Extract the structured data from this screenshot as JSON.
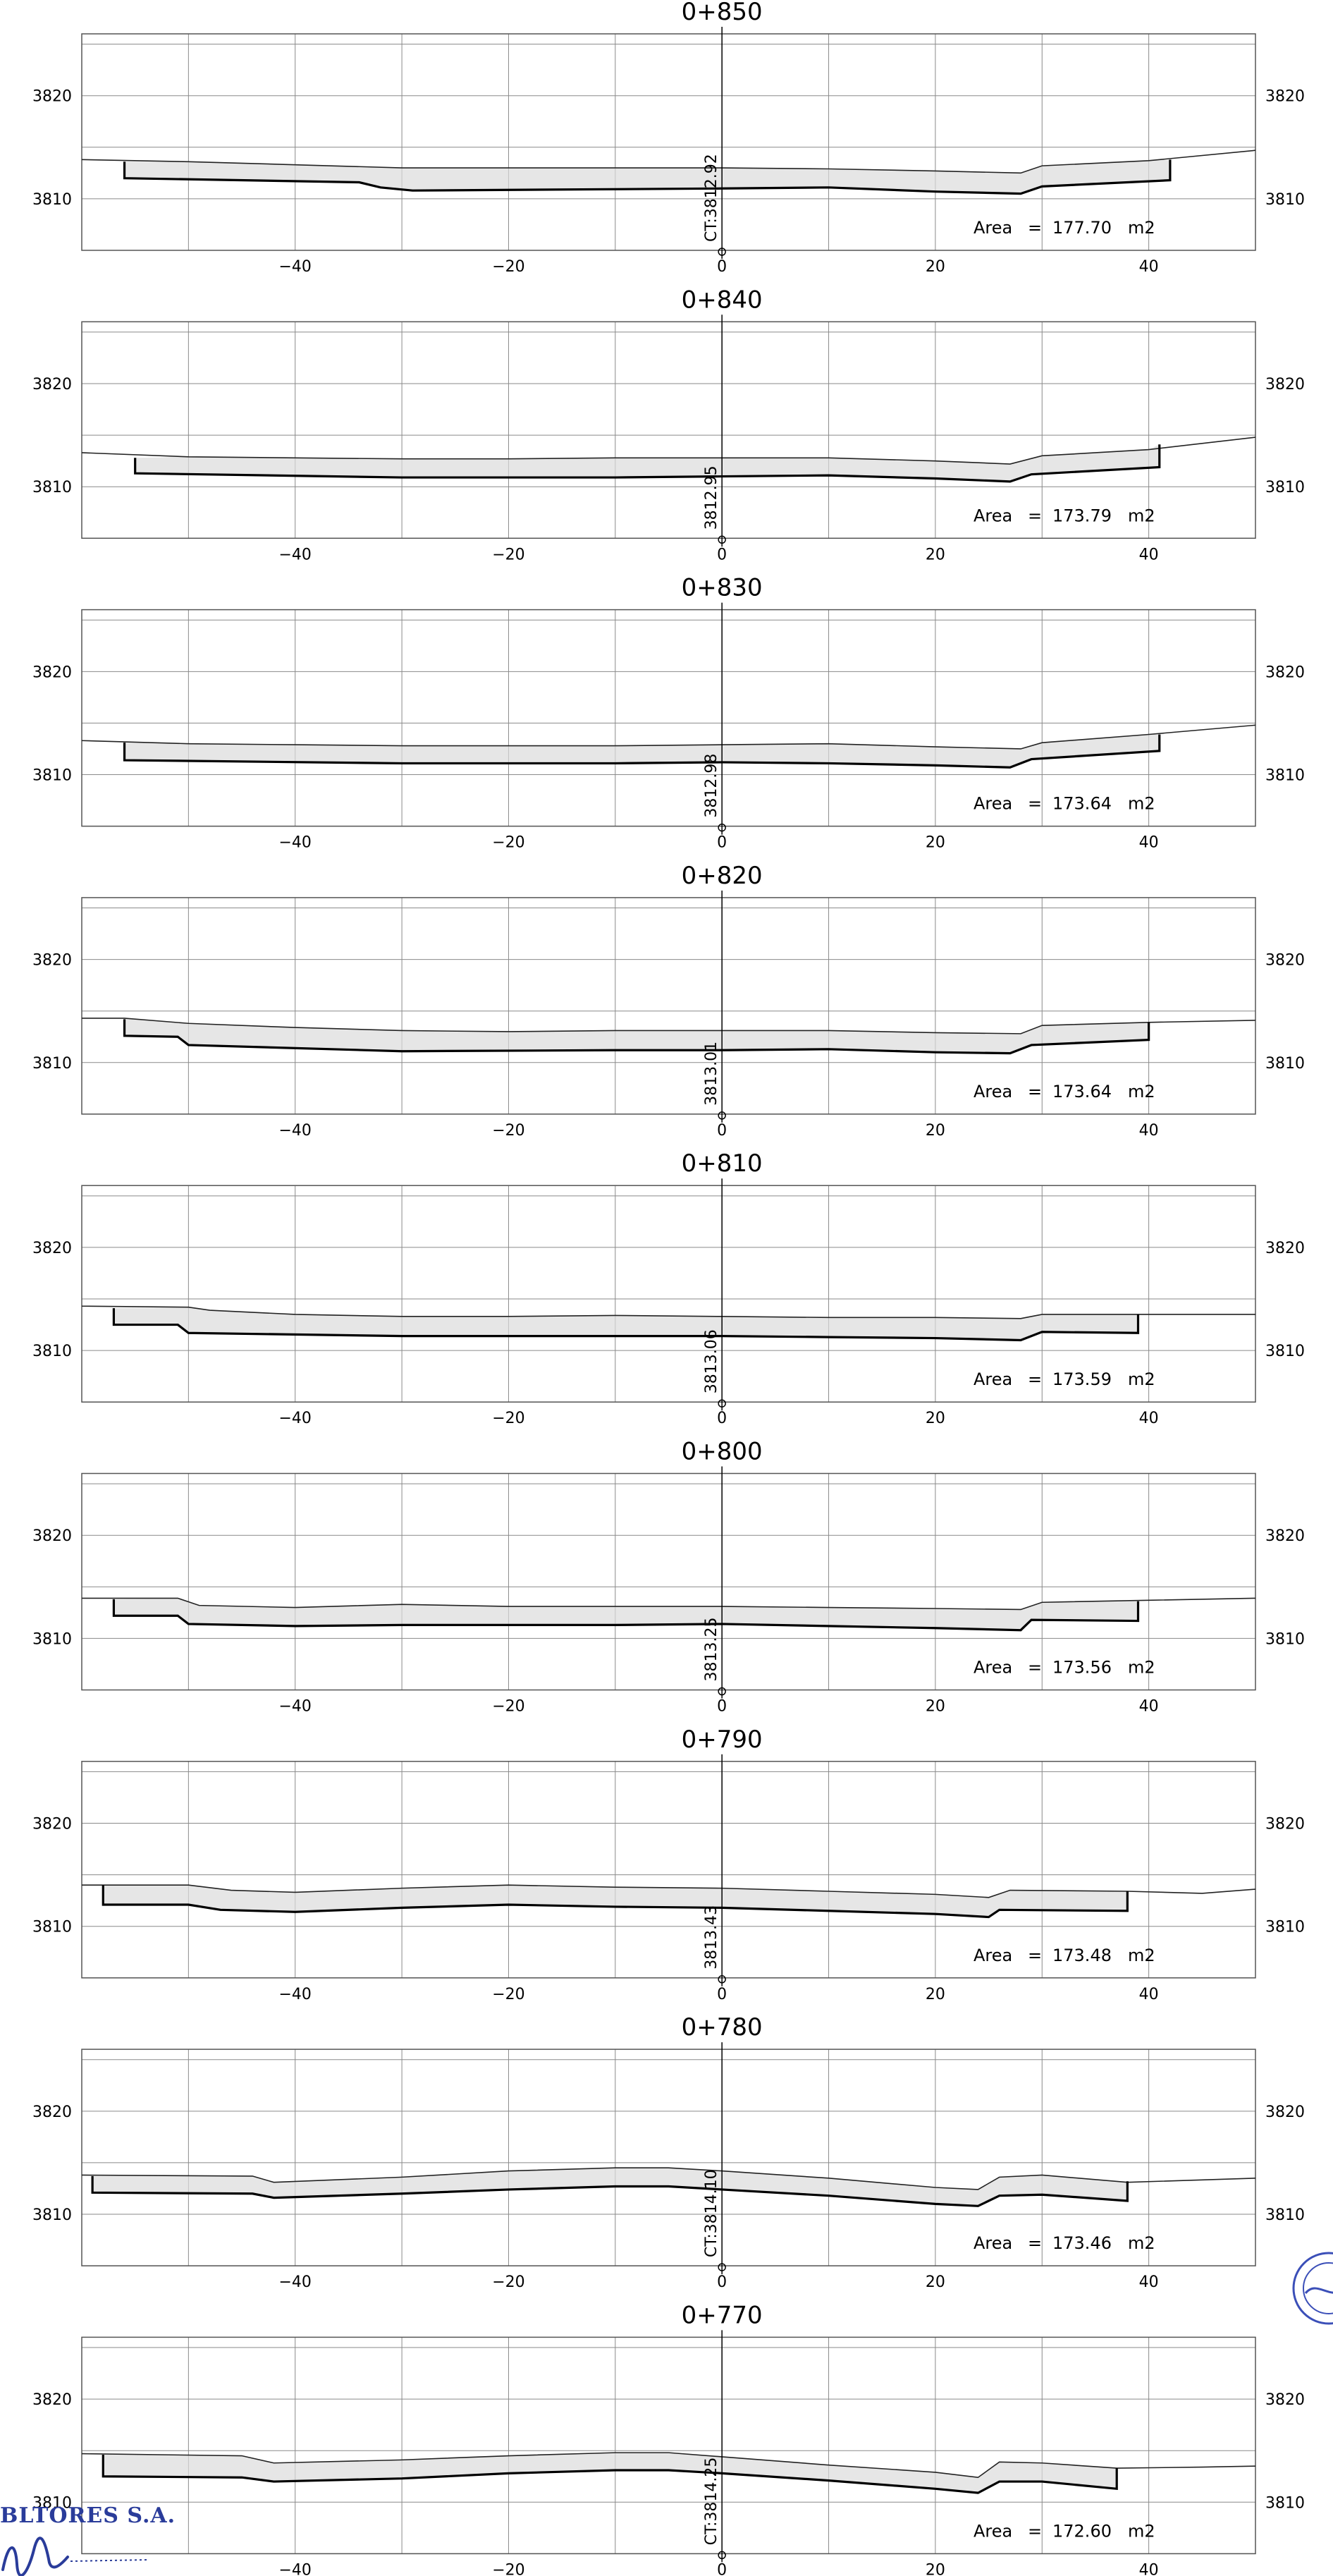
{
  "drawing": {
    "x_axis": {
      "min": -60,
      "max": 50,
      "ticks": [
        -40,
        -20,
        0,
        20,
        40
      ],
      "grid_step": 10
    },
    "y_axis": {
      "min": 3805,
      "max": 3826,
      "ticks": [
        3810,
        3820
      ],
      "grid_step": 5
    },
    "line_color": "#000000",
    "grid_color": "#8a8a8a",
    "fill_color": "#dcdcdc",
    "area_label": "Area",
    "area_equals": "=",
    "area_unit": "m2"
  },
  "sections": [
    {
      "station": "0+850",
      "area": "177.70",
      "axis_label": "CT:3812.92",
      "terrain": [
        [
          -60,
          3813.8
        ],
        [
          -50,
          3813.6
        ],
        [
          -40,
          3813.3
        ],
        [
          -30,
          3813.0
        ],
        [
          -20,
          3813.0
        ],
        [
          -10,
          3813.0
        ],
        [
          0,
          3813.0
        ],
        [
          10,
          3812.9
        ],
        [
          20,
          3812.7
        ],
        [
          28,
          3812.5
        ],
        [
          30,
          3813.2
        ],
        [
          40,
          3813.7
        ],
        [
          50,
          3814.7
        ]
      ],
      "design": [
        [
          -56,
          3813.6
        ],
        [
          -56,
          3812.0
        ],
        [
          -34,
          3811.6
        ],
        [
          -32,
          3811.1
        ],
        [
          -29,
          3810.8
        ],
        [
          0,
          3811.0
        ],
        [
          10,
          3811.1
        ],
        [
          20,
          3810.7
        ],
        [
          28,
          3810.5
        ],
        [
          30,
          3811.2
        ],
        [
          42,
          3811.8
        ],
        [
          42,
          3813.8
        ]
      ]
    },
    {
      "station": "0+840",
      "area": "173.79",
      "axis_label": "3812.95",
      "terrain": [
        [
          -60,
          3813.3
        ],
        [
          -50,
          3812.9
        ],
        [
          -40,
          3812.8
        ],
        [
          -30,
          3812.7
        ],
        [
          -20,
          3812.7
        ],
        [
          -10,
          3812.8
        ],
        [
          0,
          3812.8
        ],
        [
          10,
          3812.8
        ],
        [
          20,
          3812.5
        ],
        [
          27,
          3812.2
        ],
        [
          30,
          3813.0
        ],
        [
          40,
          3813.6
        ],
        [
          50,
          3814.8
        ]
      ],
      "design": [
        [
          -55,
          3812.8
        ],
        [
          -55,
          3811.3
        ],
        [
          -30,
          3810.9
        ],
        [
          -10,
          3810.9
        ],
        [
          0,
          3811.0
        ],
        [
          10,
          3811.1
        ],
        [
          20,
          3810.8
        ],
        [
          27,
          3810.5
        ],
        [
          29,
          3811.2
        ],
        [
          41,
          3811.9
        ],
        [
          41,
          3814.1
        ]
      ]
    },
    {
      "station": "0+830",
      "area": "173.64",
      "axis_label": "3812.98",
      "terrain": [
        [
          -60,
          3813.3
        ],
        [
          -50,
          3813.0
        ],
        [
          -40,
          3812.9
        ],
        [
          -30,
          3812.8
        ],
        [
          -20,
          3812.8
        ],
        [
          -10,
          3812.8
        ],
        [
          0,
          3812.9
        ],
        [
          10,
          3813.0
        ],
        [
          20,
          3812.7
        ],
        [
          28,
          3812.5
        ],
        [
          30,
          3813.1
        ],
        [
          40,
          3813.9
        ],
        [
          50,
          3814.8
        ]
      ],
      "design": [
        [
          -56,
          3813.1
        ],
        [
          -56,
          3811.4
        ],
        [
          -30,
          3811.1
        ],
        [
          -10,
          3811.1
        ],
        [
          0,
          3811.2
        ],
        [
          10,
          3811.1
        ],
        [
          20,
          3810.9
        ],
        [
          27,
          3810.7
        ],
        [
          29,
          3811.5
        ],
        [
          41,
          3812.3
        ],
        [
          41,
          3813.9
        ]
      ]
    },
    {
      "station": "0+820",
      "area": "173.64",
      "axis_label": "3813.01",
      "terrain": [
        [
          -60,
          3814.3
        ],
        [
          -56,
          3814.3
        ],
        [
          -50,
          3813.8
        ],
        [
          -40,
          3813.4
        ],
        [
          -30,
          3813.1
        ],
        [
          -20,
          3813.0
        ],
        [
          -10,
          3813.1
        ],
        [
          0,
          3813.1
        ],
        [
          10,
          3813.1
        ],
        [
          20,
          3812.9
        ],
        [
          28,
          3812.8
        ],
        [
          30,
          3813.6
        ],
        [
          40,
          3813.9
        ],
        [
          50,
          3814.1
        ]
      ],
      "design": [
        [
          -56,
          3814.2
        ],
        [
          -56,
          3812.6
        ],
        [
          -51,
          3812.5
        ],
        [
          -50,
          3811.7
        ],
        [
          -30,
          3811.1
        ],
        [
          -10,
          3811.2
        ],
        [
          0,
          3811.2
        ],
        [
          10,
          3811.3
        ],
        [
          20,
          3811.0
        ],
        [
          27,
          3810.9
        ],
        [
          29,
          3811.7
        ],
        [
          40,
          3812.2
        ],
        [
          40,
          3813.9
        ]
      ]
    },
    {
      "station": "0+810",
      "area": "173.59",
      "axis_label": "3813.06",
      "terrain": [
        [
          -60,
          3814.3
        ],
        [
          -50,
          3814.2
        ],
        [
          -48,
          3813.9
        ],
        [
          -40,
          3813.5
        ],
        [
          -30,
          3813.3
        ],
        [
          -20,
          3813.3
        ],
        [
          -10,
          3813.4
        ],
        [
          0,
          3813.3
        ],
        [
          10,
          3813.2
        ],
        [
          20,
          3813.2
        ],
        [
          28,
          3813.1
        ],
        [
          30,
          3813.5
        ],
        [
          40,
          3813.5
        ],
        [
          50,
          3813.5
        ]
      ],
      "design": [
        [
          -57,
          3814.1
        ],
        [
          -57,
          3812.5
        ],
        [
          -51,
          3812.5
        ],
        [
          -50,
          3811.7
        ],
        [
          -30,
          3811.4
        ],
        [
          -10,
          3811.4
        ],
        [
          0,
          3811.4
        ],
        [
          10,
          3811.3
        ],
        [
          20,
          3811.2
        ],
        [
          28,
          3811.0
        ],
        [
          30,
          3811.8
        ],
        [
          39,
          3811.7
        ],
        [
          39,
          3813.5
        ]
      ]
    },
    {
      "station": "0+800",
      "area": "173.56",
      "axis_label": "3813.25",
      "terrain": [
        [
          -60,
          3813.9
        ],
        [
          -51,
          3813.9
        ],
        [
          -49,
          3813.2
        ],
        [
          -40,
          3813.0
        ],
        [
          -30,
          3813.3
        ],
        [
          -20,
          3813.1
        ],
        [
          -10,
          3813.1
        ],
        [
          0,
          3813.1
        ],
        [
          10,
          3813.0
        ],
        [
          20,
          3812.9
        ],
        [
          28,
          3812.8
        ],
        [
          30,
          3813.5
        ],
        [
          40,
          3813.7
        ],
        [
          50,
          3813.9
        ]
      ],
      "design": [
        [
          -57,
          3813.8
        ],
        [
          -57,
          3812.2
        ],
        [
          -51,
          3812.2
        ],
        [
          -50,
          3811.4
        ],
        [
          -40,
          3811.2
        ],
        [
          -30,
          3811.3
        ],
        [
          -10,
          3811.3
        ],
        [
          0,
          3811.4
        ],
        [
          10,
          3811.2
        ],
        [
          20,
          3811.0
        ],
        [
          28,
          3810.8
        ],
        [
          29,
          3811.8
        ],
        [
          39,
          3811.7
        ],
        [
          39,
          3813.6
        ]
      ]
    },
    {
      "station": "0+790",
      "area": "173.48",
      "axis_label": "3813.43",
      "terrain": [
        [
          -60,
          3814.0
        ],
        [
          -50,
          3814.0
        ],
        [
          -46,
          3813.5
        ],
        [
          -40,
          3813.3
        ],
        [
          -30,
          3813.7
        ],
        [
          -20,
          3814.0
        ],
        [
          -10,
          3813.8
        ],
        [
          0,
          3813.7
        ],
        [
          10,
          3813.4
        ],
        [
          20,
          3813.1
        ],
        [
          25,
          3812.8
        ],
        [
          27,
          3813.5
        ],
        [
          38,
          3813.4
        ],
        [
          45,
          3813.2
        ],
        [
          50,
          3813.6
        ]
      ],
      "design": [
        [
          -58,
          3814.0
        ],
        [
          -58,
          3812.1
        ],
        [
          -50,
          3812.1
        ],
        [
          -47,
          3811.6
        ],
        [
          -40,
          3811.4
        ],
        [
          -30,
          3811.8
        ],
        [
          -20,
          3812.1
        ],
        [
          -10,
          3811.9
        ],
        [
          0,
          3811.8
        ],
        [
          10,
          3811.5
        ],
        [
          20,
          3811.2
        ],
        [
          25,
          3810.9
        ],
        [
          26,
          3811.6
        ],
        [
          38,
          3811.5
        ],
        [
          38,
          3813.4
        ]
      ]
    },
    {
      "station": "0+780",
      "area": "173.46",
      "axis_label": "CT:3814.10",
      "terrain": [
        [
          -60,
          3813.8
        ],
        [
          -44,
          3813.7
        ],
        [
          -42,
          3813.1
        ],
        [
          -30,
          3813.6
        ],
        [
          -20,
          3814.2
        ],
        [
          -10,
          3814.5
        ],
        [
          -5,
          3814.5
        ],
        [
          0,
          3814.2
        ],
        [
          10,
          3813.5
        ],
        [
          20,
          3812.6
        ],
        [
          24,
          3812.4
        ],
        [
          26,
          3813.6
        ],
        [
          30,
          3813.8
        ],
        [
          38,
          3813.1
        ],
        [
          50,
          3813.5
        ]
      ],
      "design": [
        [
          -59,
          3813.7
        ],
        [
          -59,
          3812.1
        ],
        [
          -44,
          3812.0
        ],
        [
          -42,
          3811.6
        ],
        [
          -30,
          3812.0
        ],
        [
          -20,
          3812.4
        ],
        [
          -10,
          3812.7
        ],
        [
          -5,
          3812.7
        ],
        [
          0,
          3812.4
        ],
        [
          10,
          3811.8
        ],
        [
          20,
          3811.0
        ],
        [
          24,
          3810.8
        ],
        [
          26,
          3811.8
        ],
        [
          30,
          3811.9
        ],
        [
          38,
          3811.3
        ],
        [
          38,
          3813.2
        ]
      ]
    },
    {
      "station": "0+770",
      "area": "172.60",
      "axis_label": "CT:3814.25",
      "terrain": [
        [
          -60,
          3814.7
        ],
        [
          -45,
          3814.5
        ],
        [
          -42,
          3813.8
        ],
        [
          -30,
          3814.1
        ],
        [
          -20,
          3814.5
        ],
        [
          -10,
          3814.8
        ],
        [
          -5,
          3814.8
        ],
        [
          0,
          3814.4
        ],
        [
          10,
          3813.6
        ],
        [
          20,
          3812.9
        ],
        [
          24,
          3812.4
        ],
        [
          26,
          3813.9
        ],
        [
          30,
          3813.8
        ],
        [
          37,
          3813.3
        ],
        [
          45,
          3813.4
        ],
        [
          50,
          3813.5
        ]
      ],
      "design": [
        [
          -58,
          3814.6
        ],
        [
          -58,
          3812.5
        ],
        [
          -45,
          3812.4
        ],
        [
          -42,
          3812.0
        ],
        [
          -30,
          3812.3
        ],
        [
          -20,
          3812.8
        ],
        [
          -10,
          3813.1
        ],
        [
          -5,
          3813.1
        ],
        [
          0,
          3812.8
        ],
        [
          10,
          3812.1
        ],
        [
          20,
          3811.3
        ],
        [
          24,
          3810.9
        ],
        [
          26,
          3812.0
        ],
        [
          30,
          3812.0
        ],
        [
          37,
          3811.3
        ],
        [
          37,
          3813.3
        ]
      ]
    }
  ],
  "company": {
    "name": "BLTORES S.A."
  }
}
